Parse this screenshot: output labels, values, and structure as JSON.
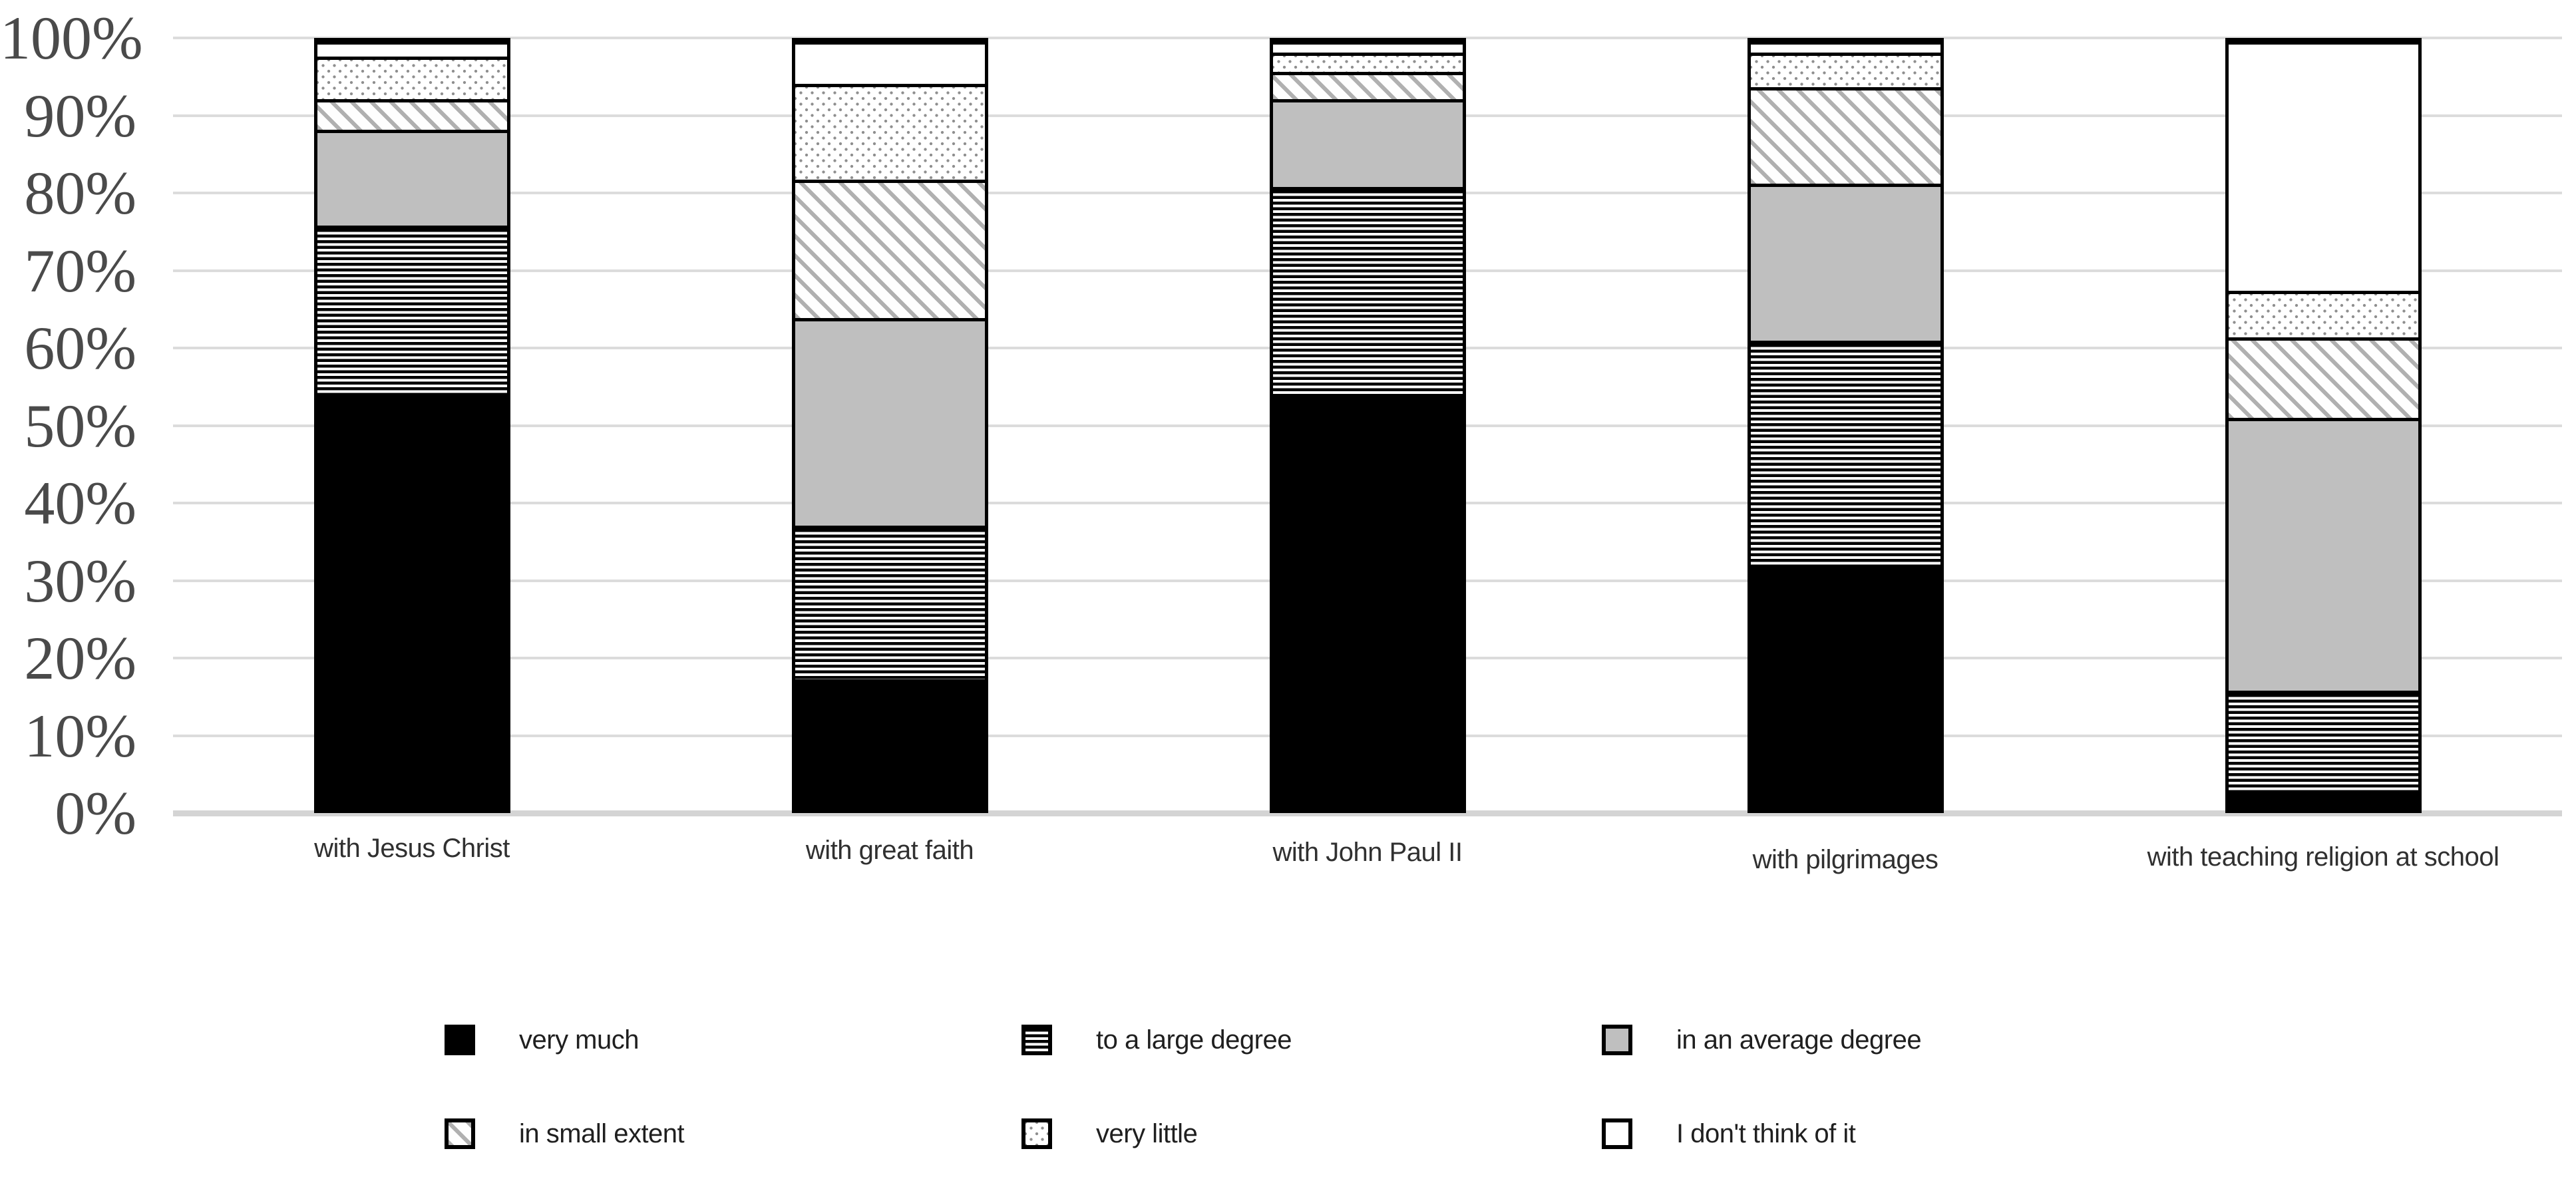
{
  "chart_data": {
    "type": "bar",
    "stacked": true,
    "title": "",
    "xlabel": "",
    "ylabel": "",
    "ylim": [
      0,
      100
    ],
    "grid": true,
    "legend_position": "bottom",
    "y_ticks": [
      "0%",
      "10%",
      "20%",
      "30%",
      "40%",
      "50%",
      "60%",
      "70%",
      "80%",
      "90%",
      "100%"
    ],
    "categories": [
      "with Jesus Christ",
      "with great faith",
      "with John Paul II",
      "with pilgrimages",
      "with teaching religion at school"
    ],
    "series": [
      {
        "name": "very much",
        "pattern": "solid-black",
        "values": [
          54,
          17,
          54,
          31.5,
          2.5
        ]
      },
      {
        "name": "to a large degree",
        "pattern": "horizontal-lines",
        "values": [
          22,
          20,
          27,
          29.5,
          13
        ]
      },
      {
        "name": "in an average degree",
        "pattern": "solid-gray",
        "values": [
          12.5,
          27,
          11.5,
          20.5,
          35.5
        ]
      },
      {
        "name": "in small extent",
        "pattern": "diagonal-stripes",
        "values": [
          4,
          18,
          3.5,
          12.5,
          10.5
        ]
      },
      {
        "name": "very little",
        "pattern": "dots",
        "values": [
          5.5,
          12.5,
          2.5,
          4.5,
          6
        ]
      },
      {
        "name": "I don't think of it",
        "pattern": "white",
        "values": [
          2,
          5.5,
          1.5,
          1.5,
          32.5
        ]
      }
    ]
  },
  "colors": {
    "background": "#ffffff",
    "bar_border": "#000000",
    "solid_black": "#000000",
    "solid_gray": "#bfbfbf",
    "stripe_gray": "#b0b0b0",
    "dot_gray": "#8f8f8f",
    "gridline": "#dcdcdc",
    "axis_tick_text": "#4a4a4a",
    "category_text": "#303030",
    "legend_text": "#1f1f1f"
  }
}
